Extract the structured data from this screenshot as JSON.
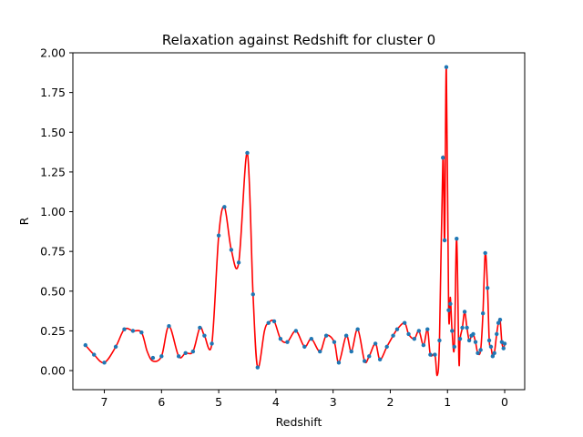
{
  "chart_data": {
    "type": "line",
    "title": "Relaxation against Redshift for cluster 0",
    "xlabel": "Redshift",
    "ylabel": "R",
    "xlim": [
      7.55,
      -0.35
    ],
    "ylim": [
      -0.12,
      2.0
    ],
    "x_inverted": true,
    "x_ticks": [
      7,
      6,
      5,
      4,
      3,
      2,
      1,
      0
    ],
    "x_tick_labels": [
      "7",
      "6",
      "5",
      "4",
      "3",
      "2",
      "1",
      "0"
    ],
    "y_ticks": [
      0.0,
      0.25,
      0.5,
      0.75,
      1.0,
      1.25,
      1.5,
      1.75,
      2.0
    ],
    "y_tick_labels": [
      "0.00",
      "0.25",
      "0.50",
      "0.75",
      "1.00",
      "1.25",
      "1.50",
      "1.75",
      "2.00"
    ],
    "grid": false,
    "legend": "none",
    "series": [
      {
        "style": "markers",
        "color": "#1f77b4",
        "x": [
          7.33,
          7.18,
          7.0,
          6.8,
          6.65,
          6.5,
          6.35,
          6.15,
          6.0,
          5.87,
          5.7,
          5.58,
          5.45,
          5.33,
          5.25,
          5.12,
          5.0,
          4.9,
          4.78,
          4.65,
          4.5,
          4.4,
          4.32,
          4.13,
          4.03,
          3.92,
          3.8,
          3.65,
          3.5,
          3.38,
          3.23,
          3.12,
          2.98,
          2.9,
          2.77,
          2.68,
          2.57,
          2.45,
          2.37,
          2.26,
          2.18,
          2.06,
          1.95,
          1.88,
          1.75,
          1.68,
          1.58,
          1.5,
          1.42,
          1.35,
          1.3,
          1.22,
          1.14,
          1.08,
          1.05,
          1.02,
          0.98,
          0.95,
          0.92,
          0.88,
          0.84,
          0.78,
          0.74,
          0.7,
          0.66,
          0.62,
          0.58,
          0.55,
          0.51,
          0.47,
          0.42,
          0.38,
          0.34,
          0.3,
          0.27,
          0.24,
          0.21,
          0.18,
          0.14,
          0.11,
          0.08,
          0.05,
          0.02,
          0.0
        ],
        "values": [
          0.16,
          0.1,
          0.05,
          0.15,
          0.26,
          0.25,
          0.24,
          0.08,
          0.09,
          0.28,
          0.09,
          0.11,
          0.12,
          0.27,
          0.22,
          0.17,
          0.85,
          1.03,
          0.76,
          0.68,
          1.37,
          0.48,
          0.02,
          0.3,
          0.31,
          0.2,
          0.18,
          0.25,
          0.15,
          0.2,
          0.12,
          0.22,
          0.18,
          0.05,
          0.22,
          0.12,
          0.26,
          0.06,
          0.09,
          0.17,
          0.07,
          0.15,
          0.22,
          0.26,
          0.3,
          0.23,
          0.2,
          0.25,
          0.16,
          0.26,
          0.1,
          0.1,
          0.19,
          1.34,
          0.82,
          1.91,
          0.38,
          0.42,
          0.25,
          0.15,
          0.83,
          0.2,
          0.27,
          0.37,
          0.27,
          0.19,
          0.22,
          0.23,
          0.18,
          0.11,
          0.13,
          0.36,
          0.74,
          0.52,
          0.19,
          0.15,
          0.09,
          0.11,
          0.23,
          0.3,
          0.32,
          0.18,
          0.14,
          0.17
        ]
      },
      {
        "style": "line",
        "color": "#ff0000",
        "x": [
          7.33,
          7.18,
          7.0,
          6.8,
          6.65,
          6.5,
          6.35,
          6.25,
          6.15,
          6.0,
          5.87,
          5.7,
          5.58,
          5.45,
          5.33,
          5.25,
          5.12,
          5.0,
          4.9,
          4.78,
          4.65,
          4.5,
          4.4,
          4.32,
          4.2,
          4.13,
          4.03,
          3.92,
          3.8,
          3.65,
          3.5,
          3.38,
          3.23,
          3.12,
          2.98,
          2.9,
          2.77,
          2.68,
          2.57,
          2.45,
          2.37,
          2.26,
          2.18,
          2.06,
          1.95,
          1.88,
          1.75,
          1.68,
          1.58,
          1.5,
          1.42,
          1.35,
          1.3,
          1.22,
          1.18,
          1.14,
          1.08,
          1.05,
          1.02,
          0.98,
          0.95,
          0.92,
          0.88,
          0.84,
          0.8,
          0.78,
          0.74,
          0.7,
          0.66,
          0.62,
          0.58,
          0.55,
          0.51,
          0.47,
          0.42,
          0.38,
          0.34,
          0.3,
          0.27,
          0.24,
          0.21,
          0.18,
          0.14,
          0.11,
          0.08,
          0.05,
          0.02,
          0.0
        ],
        "values": [
          0.16,
          0.1,
          0.05,
          0.15,
          0.26,
          0.25,
          0.24,
          0.12,
          0.06,
          0.09,
          0.28,
          0.09,
          0.11,
          0.12,
          0.27,
          0.22,
          0.17,
          0.85,
          1.03,
          0.76,
          0.68,
          1.37,
          0.48,
          0.02,
          0.25,
          0.3,
          0.31,
          0.2,
          0.18,
          0.25,
          0.15,
          0.2,
          0.12,
          0.22,
          0.18,
          0.05,
          0.22,
          0.12,
          0.26,
          0.06,
          0.09,
          0.17,
          0.07,
          0.15,
          0.22,
          0.26,
          0.3,
          0.23,
          0.2,
          0.25,
          0.16,
          0.26,
          0.1,
          0.1,
          -0.03,
          0.19,
          1.34,
          0.82,
          1.91,
          0.38,
          0.46,
          0.25,
          0.15,
          0.83,
          0.06,
          0.2,
          0.27,
          0.37,
          0.27,
          0.19,
          0.22,
          0.23,
          0.18,
          0.11,
          0.13,
          0.36,
          0.74,
          0.52,
          0.19,
          0.15,
          0.09,
          0.11,
          0.23,
          0.3,
          0.32,
          0.18,
          0.14,
          0.17
        ]
      }
    ]
  }
}
